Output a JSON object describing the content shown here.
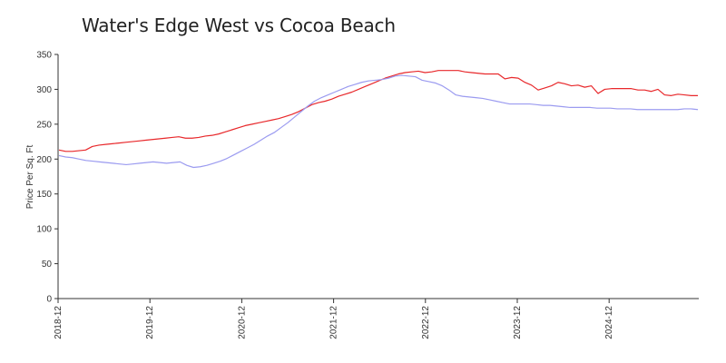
{
  "chart_data": {
    "type": "line",
    "title": "Water's Edge West vs Cocoa Beach",
    "xlabel": "",
    "ylabel": "Price Per Sq. Ft",
    "ylim": [
      0,
      350
    ],
    "yticks": [
      0,
      50,
      100,
      150,
      200,
      250,
      300,
      350
    ],
    "xtick_labels": [
      "2018-12",
      "2019-12",
      "2020-12",
      "2021-12",
      "2022-12",
      "2023-12",
      "2024-12"
    ],
    "grid": false,
    "colors": [
      "#e8282b",
      "#9b9bf0"
    ],
    "series": [
      {
        "color": "#e8282b",
        "values": [
          213,
          211,
          211,
          212,
          213,
          218,
          220,
          221,
          222,
          223,
          224,
          225,
          226,
          227,
          228,
          229,
          230,
          231,
          232,
          230,
          230,
          231,
          233,
          234,
          236,
          239,
          242,
          245,
          248,
          250,
          252,
          254,
          256,
          258,
          261,
          264,
          268,
          273,
          278,
          281,
          283,
          286,
          290,
          293,
          296,
          300,
          304,
          308,
          312,
          316,
          319,
          322,
          324,
          325,
          326,
          324,
          325,
          327,
          327,
          327,
          327,
          325,
          324,
          323,
          322,
          322,
          322,
          315,
          317,
          316,
          310,
          306,
          299,
          302,
          305,
          310,
          308,
          305,
          306,
          303,
          305,
          294,
          300,
          301,
          301,
          301,
          301,
          299,
          299,
          297,
          300,
          292,
          291,
          293,
          292,
          291,
          291
        ]
      },
      {
        "color": "#9b9bf0",
        "values": [
          205,
          203,
          202,
          200,
          198,
          197,
          196,
          195,
          194,
          193,
          192,
          193,
          194,
          195,
          196,
          195,
          194,
          195,
          196,
          191,
          188,
          189,
          191,
          194,
          197,
          201,
          206,
          211,
          216,
          221,
          227,
          233,
          238,
          245,
          252,
          260,
          268,
          276,
          283,
          288,
          292,
          296,
          300,
          304,
          307,
          310,
          312,
          313,
          314,
          316,
          319,
          320,
          319,
          318,
          313,
          311,
          309,
          305,
          299,
          292,
          290,
          289,
          288,
          287,
          285,
          283,
          281,
          279,
          279,
          279,
          279,
          278,
          277,
          277,
          276,
          275,
          274,
          274,
          274,
          274,
          273,
          273,
          273,
          272,
          272,
          272,
          271,
          271,
          271,
          271,
          271,
          271,
          271,
          272,
          272,
          271
        ]
      }
    ]
  }
}
